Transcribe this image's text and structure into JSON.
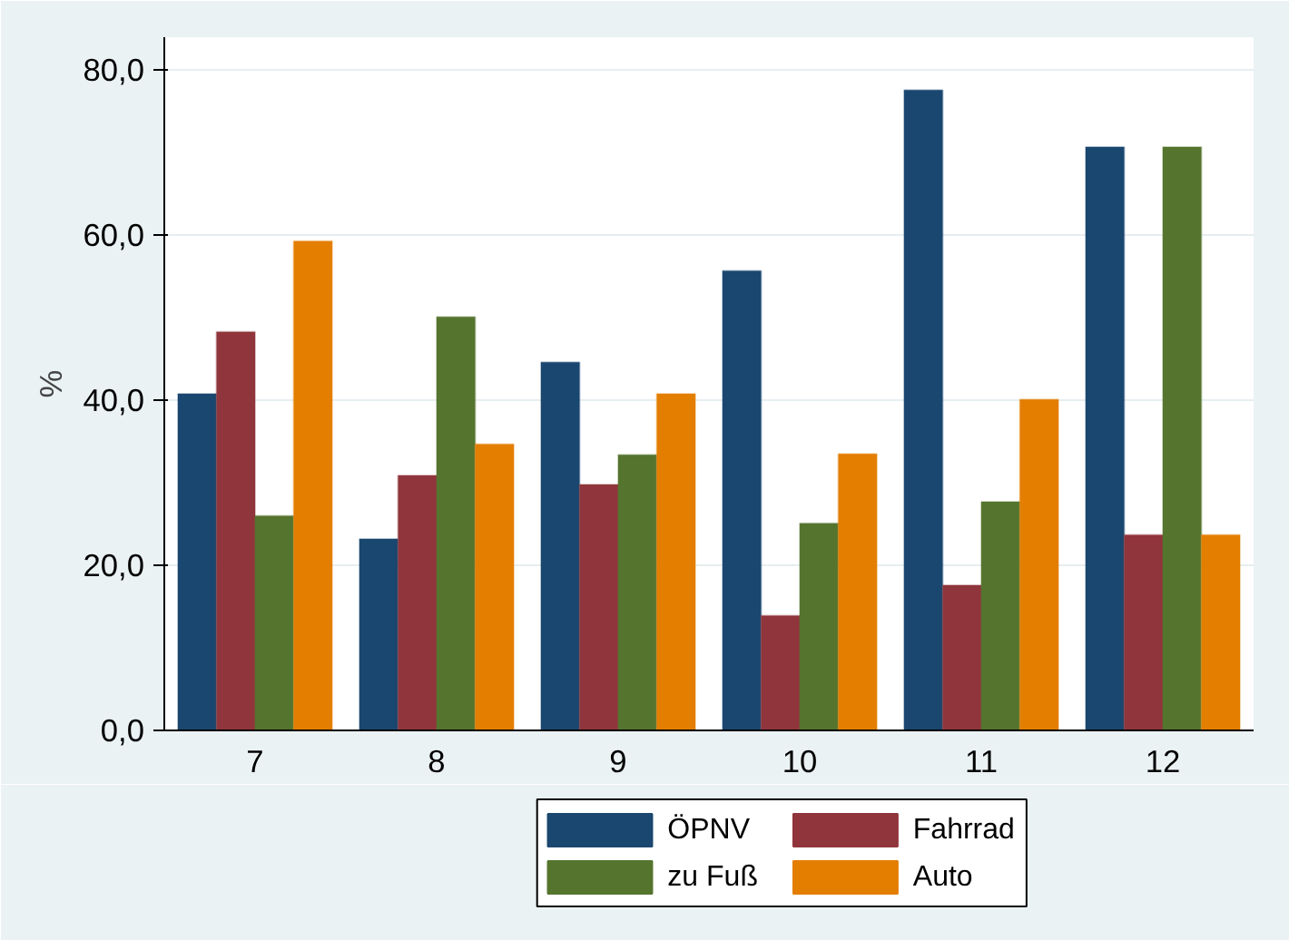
{
  "chart_data": {
    "type": "bar",
    "ylabel": "%",
    "categories": [
      "7",
      "8",
      "9",
      "10",
      "11",
      "12"
    ],
    "series": [
      {
        "name": "ÖPNV",
        "color": "#1a476f",
        "values": [
          40.8,
          23.2,
          44.6,
          55.7,
          77.6,
          70.7
        ]
      },
      {
        "name": "Fahrrad",
        "color": "#90353b",
        "values": [
          48.3,
          30.9,
          29.8,
          13.9,
          17.6,
          23.7
        ]
      },
      {
        "name": "zu Fuß",
        "color": "#55752f",
        "values": [
          26.0,
          50.1,
          33.4,
          25.1,
          27.7,
          70.7
        ]
      },
      {
        "name": "Auto",
        "color": "#e37e00",
        "values": [
          59.3,
          34.7,
          40.8,
          33.5,
          40.1,
          23.7
        ]
      }
    ],
    "ylim": [
      0,
      84
    ],
    "yticks": [
      {
        "value": 0,
        "label": "0,0"
      },
      {
        "value": 20,
        "label": "20,0"
      },
      {
        "value": 40,
        "label": "40,0"
      },
      {
        "value": 60,
        "label": "60,0"
      },
      {
        "value": 80,
        "label": "80,0"
      }
    ],
    "grid": "y",
    "legend": "bottom"
  }
}
